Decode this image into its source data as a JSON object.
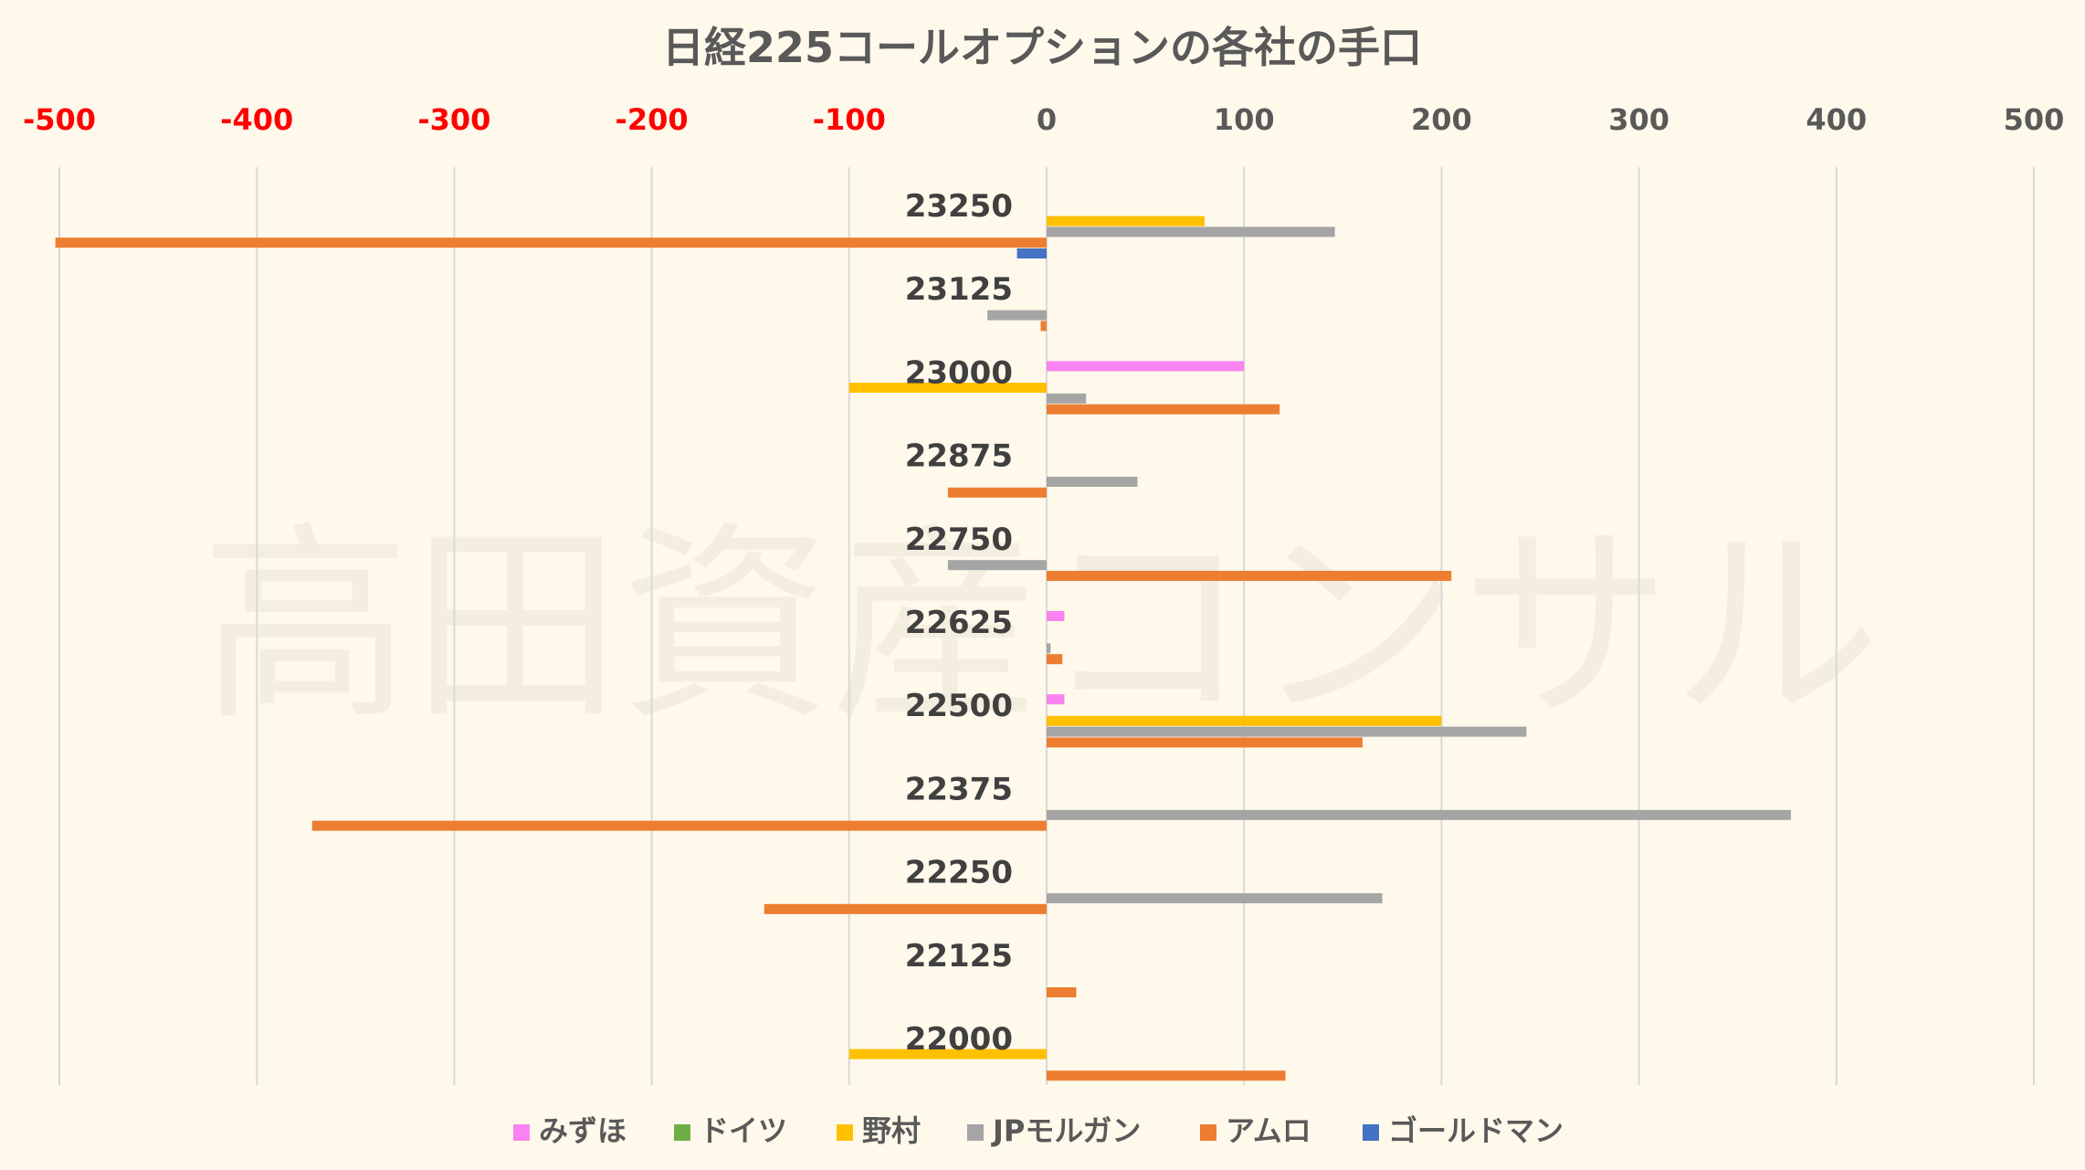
{
  "chart_data": {
    "type": "bar",
    "orientation": "horizontal",
    "title": "日経225コールオプションの各社の手口",
    "watermark": "高田資産コンサル",
    "xlim": [
      -500,
      500
    ],
    "x_ticks": [
      -500,
      -400,
      -300,
      -200,
      -100,
      0,
      100,
      200,
      300,
      400,
      500
    ],
    "negative_tick_color": "#ff0000",
    "tick_color": "#595959",
    "grid": true,
    "legend_position": "bottom",
    "categories": [
      "23250",
      "23125",
      "23000",
      "22875",
      "22750",
      "22625",
      "22500",
      "22375",
      "22250",
      "22125",
      "22000"
    ],
    "series": [
      {
        "name": "みずほ",
        "color": "#f983f0",
        "values": [
          0,
          0,
          100,
          0,
          0,
          9,
          9,
          0,
          0,
          0,
          0
        ]
      },
      {
        "name": "ドイツ",
        "color": "#70ad47",
        "values": [
          0,
          0,
          0,
          0,
          0,
          0,
          0,
          0,
          0,
          0,
          0
        ]
      },
      {
        "name": "野村",
        "color": "#ffc000",
        "values": [
          80,
          0,
          -100,
          0,
          0,
          0,
          200,
          0,
          0,
          0,
          -100
        ]
      },
      {
        "name": "JPモルガン",
        "color": "#a5a5a5",
        "values": [
          146,
          -30,
          20,
          46,
          -50,
          2,
          243,
          377,
          170,
          0,
          0
        ]
      },
      {
        "name": "アムロ",
        "color": "#ed7d31",
        "values": [
          -502,
          -3,
          118,
          -50,
          205,
          8,
          160,
          -372,
          -143,
          15,
          121
        ]
      },
      {
        "name": "ゴールドマン",
        "color": "#4472c4",
        "values": [
          -15,
          0,
          0,
          0,
          0,
          0,
          0,
          0,
          0,
          0,
          0
        ]
      }
    ]
  }
}
